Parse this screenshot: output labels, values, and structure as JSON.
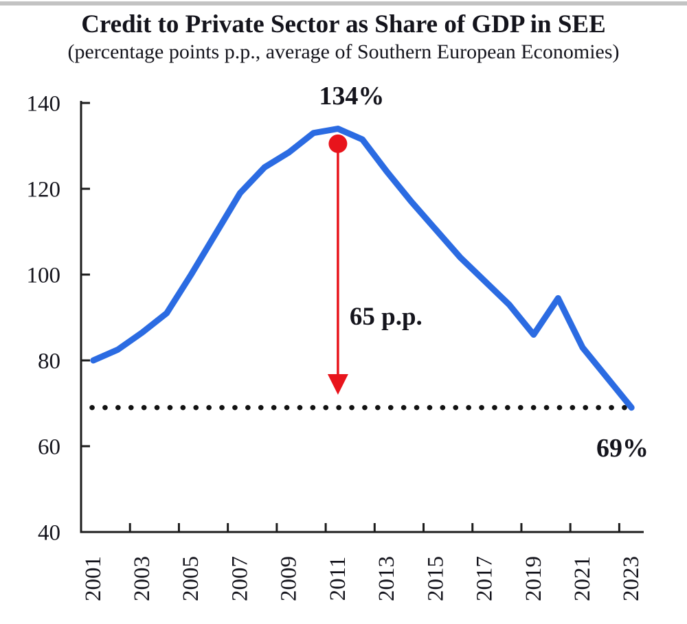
{
  "chart_data": {
    "type": "line",
    "title": "Credit to Private Sector as Share of GDP in SEE",
    "subtitle": "(percentage points p.p., average of Southern European Economies)",
    "x": [
      2001,
      2002,
      2003,
      2004,
      2005,
      2006,
      2007,
      2008,
      2009,
      2010,
      2011,
      2012,
      2013,
      2014,
      2015,
      2016,
      2017,
      2018,
      2019,
      2020,
      2021,
      2022,
      2023
    ],
    "values": [
      80,
      82.5,
      86.5,
      91,
      100,
      109.5,
      119,
      125,
      128.5,
      133,
      134,
      131.5,
      124,
      117,
      110.5,
      104,
      98.5,
      93,
      86,
      94.5,
      83,
      76,
      69
    ],
    "ylim": [
      40,
      140
    ],
    "yticks": [
      40,
      60,
      80,
      100,
      120,
      140
    ],
    "xticks_labeled": [
      2001,
      2003,
      2005,
      2007,
      2009,
      2011,
      2013,
      2015,
      2017,
      2019,
      2021,
      2023
    ],
    "grid": false,
    "legend": false,
    "line_color": "#2b6be2",
    "axis_color": "#1c1c1c",
    "reference_line": {
      "value": 69,
      "style": "dotted",
      "color": "#121212"
    },
    "arrow": {
      "year": 2011,
      "from_value": 130.5,
      "to_value": 72,
      "color": "#e8141c"
    },
    "annotations": {
      "peak": {
        "text": "134%",
        "year": 2011,
        "value": 134
      },
      "drop": {
        "text": "65 p.p."
      },
      "end": {
        "text": "69%",
        "year": 2023,
        "value": 69
      }
    }
  }
}
